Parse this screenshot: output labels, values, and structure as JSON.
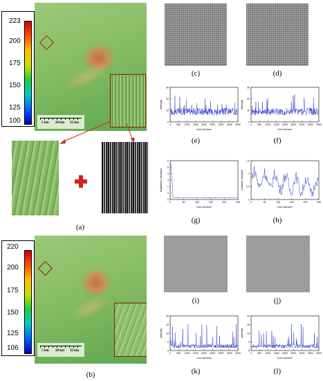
{
  "panels": {
    "a": "(a)",
    "b": "(b)",
    "c": "(c)",
    "d": "(d)",
    "e": "(e)",
    "f": "(f)",
    "g": "(g)",
    "h": "(h)",
    "i": "(i)",
    "j": "(j)",
    "k": "(k)",
    "l": "(l)"
  },
  "colorbar_a": {
    "ticks": [
      "223",
      "200",
      "175",
      "150",
      "125",
      "100"
    ]
  },
  "colorbar_b": {
    "ticks": [
      "220",
      "200",
      "175",
      "150",
      "125",
      "106"
    ]
  },
  "scalebar": {
    "labels": [
      "5 km",
      "20 km",
      "35 km"
    ]
  },
  "chart_data": [
    {
      "panel": "e",
      "type": "line",
      "ylabel": "Intensity",
      "xlabel": "Line Number",
      "xticks": [
        "0",
        "500",
        "1000",
        "1500",
        "2000",
        "2500",
        "3000",
        "3500",
        "4000"
      ],
      "yticks": [
        "0",
        "10",
        "20",
        "30"
      ]
    },
    {
      "panel": "f",
      "type": "line",
      "ylabel": "Intensity",
      "xlabel": "Line Number",
      "xticks": [
        "0",
        "500",
        "1000",
        "1500",
        "2000",
        "2500",
        "3000",
        "3500",
        "4000"
      ],
      "yticks": [
        "0",
        "10",
        "20",
        "30"
      ]
    },
    {
      "panel": "g",
      "type": "line",
      "ylabel": "Brightness Variation",
      "xlabel": "Line Number",
      "xticks": [
        "0",
        "50",
        "100",
        "150",
        "200",
        "250"
      ],
      "yticks": [
        "0",
        "1",
        "2",
        "3",
        "4",
        "5",
        "6"
      ]
    },
    {
      "panel": "h",
      "type": "line",
      "ylabel": "Contrast Variation",
      "xlabel": "Line Number",
      "xticks": [
        "0",
        "50",
        "100",
        "150",
        "200",
        "250"
      ],
      "yticks": [
        "0",
        "0.5",
        "1",
        "1.5"
      ]
    },
    {
      "panel": "k",
      "type": "line",
      "ylabel": "Intensity",
      "xlabel": "Line Number",
      "xticks": [
        "0",
        "500",
        "1000",
        "1500",
        "2000",
        "2500",
        "3000",
        "3500",
        "4000"
      ],
      "yticks": [
        "0",
        "5",
        "10",
        "15",
        "20"
      ]
    },
    {
      "panel": "l",
      "type": "line",
      "ylabel": "Intensity",
      "xlabel": "Line Number",
      "xticks": [
        "0",
        "500",
        "1000",
        "1500",
        "2000",
        "2500",
        "3000",
        "3500",
        "4000"
      ],
      "yticks": [
        "0",
        "5",
        "10",
        "15",
        "20"
      ]
    }
  ]
}
